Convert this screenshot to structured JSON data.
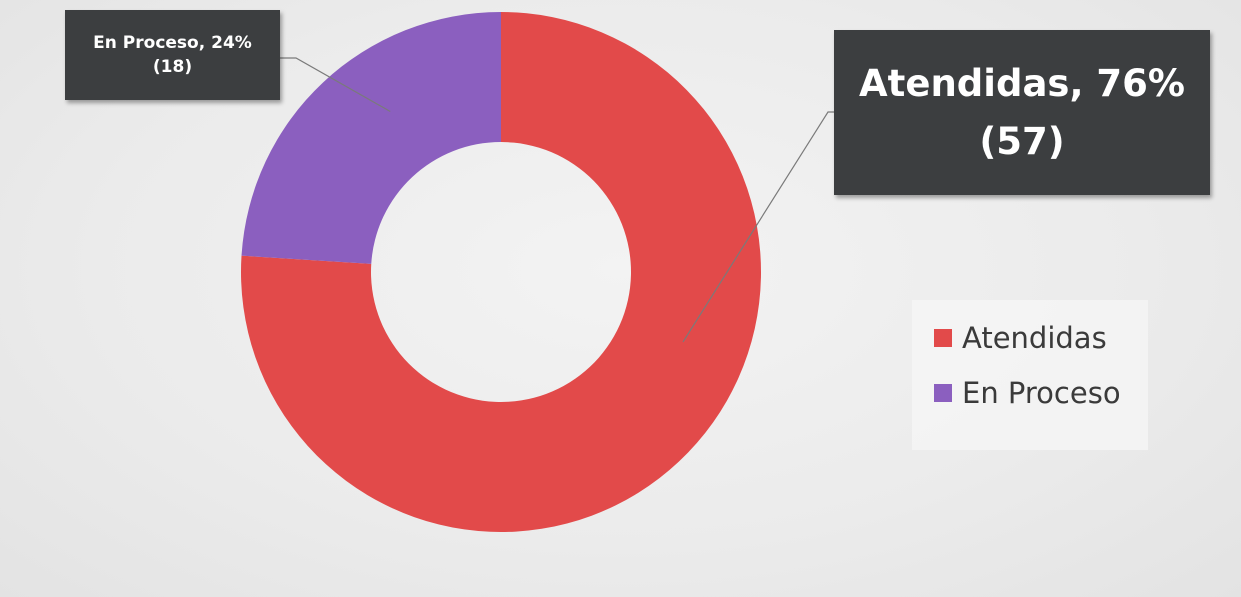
{
  "chart_data": {
    "type": "pie",
    "variant": "donut",
    "categories": [
      "Atendidas",
      "En Proceso"
    ],
    "values": [
      57,
      18
    ],
    "percentages": [
      76,
      24
    ],
    "colors": [
      "#e24a4a",
      "#8b5fbf"
    ],
    "data_labels": [
      {
        "line1": "Atendidas, 76%",
        "line2": "(57)"
      },
      {
        "line1": "En Proceso, 24%",
        "line2": "(18)"
      }
    ],
    "legend": {
      "placement": "right",
      "entries": [
        {
          "label": "Atendidas",
          "color": "#e24a4a"
        },
        {
          "label": "En Proceso",
          "color": "#8b5fbf"
        }
      ]
    }
  }
}
